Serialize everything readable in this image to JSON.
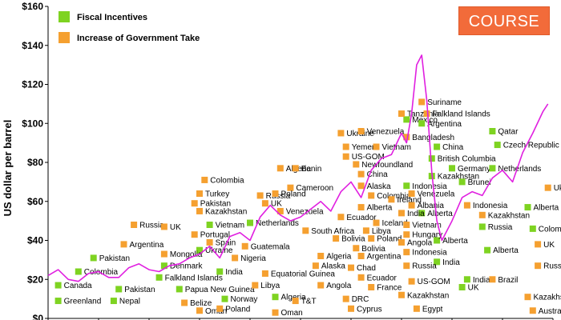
{
  "badge": "COURSE",
  "chart_data": {
    "type": "line",
    "title": "",
    "ylabel": "US dollar per barrel",
    "ylim": [
      0,
      160
    ],
    "yticks": [
      0,
      20,
      40,
      60,
      80,
      100,
      120,
      140,
      160
    ],
    "ytick_labels": [
      "$0",
      "$20",
      "$40",
      "$60",
      "$80",
      "$100",
      "$120",
      "$140",
      "$160"
    ],
    "xlim": [
      0,
      100
    ],
    "grid": false,
    "legend_position": "top-left",
    "colors": {
      "price_line": "#e020e0",
      "fiscal_incentives": "#7ed321",
      "government_take": "#f5a030"
    },
    "legend": [
      {
        "key": "fiscal",
        "label": "Fiscal Incentives",
        "color": "#7ed321"
      },
      {
        "key": "take",
        "label": "Increase of Government Take",
        "color": "#f5a030"
      }
    ],
    "price_series": {
      "name": "",
      "x": [
        0,
        2,
        4,
        6,
        8,
        10,
        12,
        14,
        16,
        18,
        20,
        22,
        24,
        26,
        28,
        30,
        32,
        34,
        36,
        38,
        40,
        42,
        44,
        46,
        48,
        50,
        52,
        54,
        56,
        58,
        60,
        62,
        64,
        66,
        68,
        70,
        71,
        72,
        73,
        74,
        75,
        76,
        77,
        78,
        80,
        82,
        84,
        86,
        88,
        90,
        92,
        94,
        96,
        98,
        99
      ],
      "y": [
        22,
        25,
        20,
        19,
        23,
        24,
        21,
        21,
        26,
        28,
        25,
        24,
        27,
        28,
        31,
        33,
        37,
        31,
        42,
        44,
        40,
        52,
        58,
        53,
        50,
        52,
        56,
        60,
        55,
        65,
        70,
        62,
        76,
        82,
        84,
        95,
        90,
        105,
        130,
        135,
        112,
        75,
        50,
        40,
        50,
        62,
        65,
        63,
        72,
        76,
        70,
        85,
        95,
        106,
        110
      ]
    },
    "fiscal_incentives": [
      {
        "label": "Pakistan",
        "x": 9,
        "y": 31
      },
      {
        "label": "Colombia",
        "x": 6,
        "y": 24
      },
      {
        "label": "Canada",
        "x": 2,
        "y": 17
      },
      {
        "label": "Greenland",
        "x": 2,
        "y": 9
      },
      {
        "label": "Nepal",
        "x": 13,
        "y": 9
      },
      {
        "label": "Pakistan",
        "x": 14,
        "y": 15
      },
      {
        "label": "Denmark",
        "x": 23,
        "y": 27
      },
      {
        "label": "Falkland Islands",
        "x": 22,
        "y": 21
      },
      {
        "label": "Ukraine",
        "x": 30,
        "y": 35
      },
      {
        "label": "Vietnam",
        "x": 32,
        "y": 48
      },
      {
        "label": "India",
        "x": 34,
        "y": 24
      },
      {
        "label": "Papua New Guinea",
        "x": 26,
        "y": 15
      },
      {
        "label": "Norway",
        "x": 35,
        "y": 10
      },
      {
        "label": "Netherlands",
        "x": 40,
        "y": 49
      },
      {
        "label": "Algeria",
        "x": 45,
        "y": 11
      },
      {
        "label": "Mexico",
        "x": 71,
        "y": 102
      },
      {
        "label": "Argentina",
        "x": 74,
        "y": 100
      },
      {
        "label": "China",
        "x": 77,
        "y": 88
      },
      {
        "label": "British Columbia",
        "x": 76,
        "y": 82
      },
      {
        "label": "Kazakhstan",
        "x": 76,
        "y": 73
      },
      {
        "label": "Indonesia",
        "x": 71,
        "y": 68
      },
      {
        "label": "Brunei",
        "x": 82,
        "y": 70
      },
      {
        "label": "Qatar",
        "x": 88,
        "y": 96
      },
      {
        "label": "Czech Republic",
        "x": 89,
        "y": 89
      },
      {
        "label": "Germany",
        "x": 80,
        "y": 77
      },
      {
        "label": "Netherlands",
        "x": 88,
        "y": 77
      },
      {
        "label": "Alberta",
        "x": 74,
        "y": 54
      },
      {
        "label": "Russia",
        "x": 86,
        "y": 47
      },
      {
        "label": "Alberta",
        "x": 95,
        "y": 57
      },
      {
        "label": "Colombia",
        "x": 96,
        "y": 46
      },
      {
        "label": "Alberta",
        "x": 77,
        "y": 40
      },
      {
        "label": "Alberta",
        "x": 87,
        "y": 35
      },
      {
        "label": "India",
        "x": 77,
        "y": 29
      },
      {
        "label": "India",
        "x": 83,
        "y": 20
      },
      {
        "label": "UK",
        "x": 82,
        "y": 16
      }
    ],
    "government_take": [
      {
        "label": "Russia",
        "x": 17,
        "y": 48
      },
      {
        "label": "UK",
        "x": 23,
        "y": 47
      },
      {
        "label": "Argentina",
        "x": 15,
        "y": 38
      },
      {
        "label": "Mongolia",
        "x": 23,
        "y": 33
      },
      {
        "label": "Colombia",
        "x": 31,
        "y": 71
      },
      {
        "label": "Turkey",
        "x": 30,
        "y": 64
      },
      {
        "label": "Pakistan",
        "x": 29,
        "y": 59
      },
      {
        "label": "Kazakhstan",
        "x": 30,
        "y": 55
      },
      {
        "label": "Portugal",
        "x": 29,
        "y": 43
      },
      {
        "label": "Spain",
        "x": 32,
        "y": 39
      },
      {
        "label": "Oman",
        "x": 30,
        "y": 4
      },
      {
        "label": "Belize",
        "x": 27,
        "y": 8
      },
      {
        "label": "Poland",
        "x": 34,
        "y": 5
      },
      {
        "label": "Algeria",
        "x": 46,
        "y": 77
      },
      {
        "label": "Benin",
        "x": 49,
        "y": 77
      },
      {
        "label": "Russia",
        "x": 42,
        "y": 63
      },
      {
        "label": "Cameroon",
        "x": 48,
        "y": 67
      },
      {
        "label": "Poland",
        "x": 45,
        "y": 64
      },
      {
        "label": "UK",
        "x": 43,
        "y": 59
      },
      {
        "label": "Venezuela",
        "x": 46,
        "y": 55
      },
      {
        "label": "Guatemala",
        "x": 39,
        "y": 37
      },
      {
        "label": "Nigeria",
        "x": 37,
        "y": 31
      },
      {
        "label": "Equatorial Guinea",
        "x": 43,
        "y": 23
      },
      {
        "label": "Libya",
        "x": 41,
        "y": 17
      },
      {
        "label": "T&T",
        "x": 49,
        "y": 9
      },
      {
        "label": "Oman",
        "x": 45,
        "y": 3
      },
      {
        "label": "Suriname",
        "x": 74,
        "y": 111
      },
      {
        "label": "Tanzania",
        "x": 70,
        "y": 105
      },
      {
        "label": "Falkland Islands",
        "x": 75,
        "y": 105
      },
      {
        "label": "Ukraine",
        "x": 58,
        "y": 95
      },
      {
        "label": "Venezuela",
        "x": 62,
        "y": 96
      },
      {
        "label": "Bangladesh",
        "x": 71,
        "y": 93
      },
      {
        "label": "Yemen",
        "x": 59,
        "y": 88
      },
      {
        "label": "Vietnam",
        "x": 65,
        "y": 88
      },
      {
        "label": "US-GOM",
        "x": 59,
        "y": 83
      },
      {
        "label": "Newfoundland",
        "x": 61,
        "y": 79
      },
      {
        "label": "China",
        "x": 62,
        "y": 74
      },
      {
        "label": "Alaska",
        "x": 62,
        "y": 68
      },
      {
        "label": "Colombia",
        "x": 64,
        "y": 63
      },
      {
        "label": "Ireland",
        "x": 68,
        "y": 61
      },
      {
        "label": "Venezuela",
        "x": 72,
        "y": 64
      },
      {
        "label": "Albania",
        "x": 72,
        "y": 58
      },
      {
        "label": "Alberta",
        "x": 62,
        "y": 57
      },
      {
        "label": "Ecuador",
        "x": 58,
        "y": 52
      },
      {
        "label": "India",
        "x": 70,
        "y": 54
      },
      {
        "label": "Iceland",
        "x": 65,
        "y": 49
      },
      {
        "label": "South Africa",
        "x": 51,
        "y": 45
      },
      {
        "label": "Libya",
        "x": 63,
        "y": 45
      },
      {
        "label": "Bolivia",
        "x": 57,
        "y": 41
      },
      {
        "label": "Poland",
        "x": 64,
        "y": 41
      },
      {
        "label": "Bolivia",
        "x": 61,
        "y": 36
      },
      {
        "label": "Algeria",
        "x": 54,
        "y": 32
      },
      {
        "label": "Argentina",
        "x": 62,
        "y": 32
      },
      {
        "label": "Alaska",
        "x": 53,
        "y": 27
      },
      {
        "label": "Chad",
        "x": 60,
        "y": 26
      },
      {
        "label": "Ecuador",
        "x": 62,
        "y": 21
      },
      {
        "label": "Angola",
        "x": 54,
        "y": 17
      },
      {
        "label": "France",
        "x": 64,
        "y": 16
      },
      {
        "label": "DRC",
        "x": 59,
        "y": 10
      },
      {
        "label": "Cyprus",
        "x": 60,
        "y": 5
      },
      {
        "label": "Vietnam",
        "x": 71,
        "y": 48
      },
      {
        "label": "Hungary",
        "x": 71,
        "y": 43
      },
      {
        "label": "Angola",
        "x": 70,
        "y": 39
      },
      {
        "label": "Indonesia",
        "x": 71,
        "y": 34
      },
      {
        "label": "Russia",
        "x": 71,
        "y": 27
      },
      {
        "label": "US-GOM",
        "x": 72,
        "y": 19
      },
      {
        "label": "Kazakhstan",
        "x": 70,
        "y": 12
      },
      {
        "label": "Egypt",
        "x": 73,
        "y": 5
      },
      {
        "label": "Ukraine",
        "x": 99,
        "y": 67
      },
      {
        "label": "Indonesia",
        "x": 83,
        "y": 58
      },
      {
        "label": "Kazakhstan",
        "x": 86,
        "y": 53
      },
      {
        "label": "UK",
        "x": 97,
        "y": 38
      },
      {
        "label": "Russia",
        "x": 97,
        "y": 27
      },
      {
        "label": "Brazil",
        "x": 88,
        "y": 20
      },
      {
        "label": "Kazakhstan",
        "x": 95,
        "y": 11
      },
      {
        "label": "Australia Onshore",
        "x": 96,
        "y": 4
      }
    ]
  }
}
